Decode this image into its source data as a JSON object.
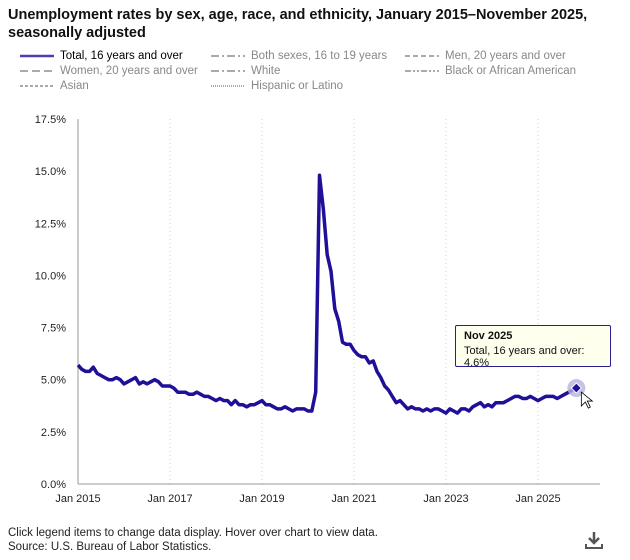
{
  "title": "Unemployment rates by sex, age, race, and ethnicity, January 2015–November 2025, seasonally adjusted",
  "legend": [
    {
      "label": "Total, 16 years and over",
      "style": "solid",
      "active": true
    },
    {
      "label": "Both sexes, 16 to 19 years",
      "style": "dashdot",
      "active": false
    },
    {
      "label": "Men, 20 years and over",
      "style": "dash",
      "active": false
    },
    {
      "label": "Women, 20 years and over",
      "style": "longdash",
      "active": false
    },
    {
      "label": "White",
      "style": "dashdot",
      "active": false
    },
    {
      "label": "Black or African American",
      "style": "dashdotdot",
      "active": false
    },
    {
      "label": "Asian",
      "style": "shortdash",
      "active": false
    },
    {
      "label": "Hispanic or Latino",
      "style": "dot",
      "active": false
    }
  ],
  "tooltip": {
    "date": "Nov 2025",
    "text": "Total, 16 years and over: 4.6%"
  },
  "notes": [
    "Click legend items to change data display. Hover over chart to view data.",
    "Source: U.S. Bureau of Labor Statistics."
  ],
  "download_icon": "download-icon",
  "chart_data": {
    "type": "line",
    "title": "Unemployment rates by sex, age, race, and ethnicity, January 2015–November 2025, seasonally adjusted",
    "x_start": "Jan 2015",
    "x_frequency": "monthly",
    "xticks": [
      "Jan 2015",
      "Jan 2017",
      "Jan 2019",
      "Jan 2021",
      "Jan 2023",
      "Jan 2025"
    ],
    "yticks": [
      "0.0%",
      "2.5%",
      "5.0%",
      "7.5%",
      "10.0%",
      "12.5%",
      "15.0%",
      "17.5%"
    ],
    "ylim": [
      0,
      17.5
    ],
    "grid": "vertical dotted",
    "color": "#1f0f99",
    "series": [
      {
        "name": "Total, 16 years and over",
        "values": [
          5.7,
          5.5,
          5.4,
          5.4,
          5.6,
          5.3,
          5.2,
          5.1,
          5.0,
          5.0,
          5.1,
          5.0,
          4.8,
          4.9,
          5.0,
          5.1,
          4.8,
          4.9,
          4.8,
          4.9,
          5.0,
          4.9,
          4.7,
          4.7,
          4.7,
          4.6,
          4.4,
          4.4,
          4.4,
          4.3,
          4.3,
          4.4,
          4.3,
          4.2,
          4.2,
          4.1,
          4.0,
          4.1,
          4.0,
          4.0,
          3.8,
          4.0,
          3.8,
          3.8,
          3.7,
          3.8,
          3.8,
          3.9,
          4.0,
          3.8,
          3.8,
          3.7,
          3.6,
          3.6,
          3.7,
          3.6,
          3.5,
          3.6,
          3.6,
          3.6,
          3.5,
          3.5,
          4.4,
          14.8,
          13.2,
          11.0,
          10.2,
          8.4,
          7.8,
          6.8,
          6.7,
          6.7,
          6.4,
          6.2,
          6.1,
          6.1,
          5.8,
          5.9,
          5.4,
          5.1,
          4.7,
          4.5,
          4.2,
          3.9,
          4.0,
          3.8,
          3.6,
          3.7,
          3.6,
          3.6,
          3.5,
          3.6,
          3.5,
          3.6,
          3.6,
          3.5,
          3.4,
          3.6,
          3.5,
          3.4,
          3.6,
          3.6,
          3.5,
          3.7,
          3.8,
          3.9,
          3.7,
          3.8,
          3.7,
          3.9,
          3.9,
          3.9,
          4.0,
          4.1,
          4.2,
          4.2,
          4.1,
          4.1,
          4.2,
          4.1,
          4.0,
          4.1,
          4.2,
          4.2,
          4.2,
          4.1,
          4.2,
          4.3,
          4.4,
          null,
          4.6
        ]
      }
    ]
  }
}
